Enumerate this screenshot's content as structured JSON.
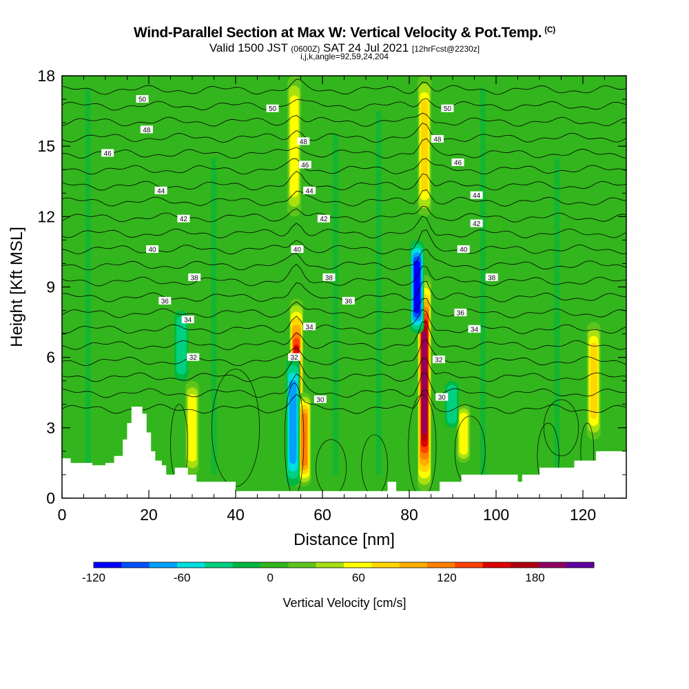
{
  "chart_data": {
    "type": "heatmap",
    "title": "Wind-Parallel Section at Max W: Vertical Velocity & Pot.Temp.",
    "title_mark": "(C)",
    "subtitle_parts": [
      "Valid 1500 JST ",
      "(0600Z)",
      " SAT 24 Jul 2021 ",
      "[12hrFcst@2230z]"
    ],
    "subtitle2": "i,j,k,angle=92,59,24,204",
    "xlabel": "Distance [nm]",
    "ylabel": "Height [Kft MSL]",
    "xlim": [
      0,
      130
    ],
    "ylim": [
      0,
      18
    ],
    "x_ticks": [
      0,
      20,
      40,
      60,
      80,
      100,
      120
    ],
    "y_ticks": [
      0,
      3,
      6,
      9,
      12,
      15,
      18
    ],
    "colorbar": {
      "label": "Vertical Velocity [cm/s]",
      "ticks": [
        -120,
        -60,
        0,
        60,
        120,
        180
      ],
      "range": [
        -120,
        220
      ],
      "colors": [
        "#0000ff",
        "#0050ff",
        "#00a0ff",
        "#00e0e0",
        "#00d080",
        "#00b840",
        "#33b51d",
        "#5cc41a",
        "#a8e010",
        "#ffff00",
        "#ffd700",
        "#ffae00",
        "#ff8000",
        "#ff4000",
        "#e00000",
        "#b00010",
        "#900060",
        "#6000a0"
      ]
    },
    "updrafts": [
      {
        "x": 54,
        "w": 160,
        "band": [
          0.5,
          8.5
        ]
      },
      {
        "x": 55.8,
        "w": 120,
        "band": [
          0.5,
          4.5
        ]
      },
      {
        "x": 83.5,
        "w": 210,
        "band": [
          0.3,
          9.5
        ]
      },
      {
        "x": 83.5,
        "w": 80,
        "band": [
          12,
          18
        ]
      },
      {
        "x": 30,
        "w": 70,
        "band": [
          1,
          5
        ]
      },
      {
        "x": 122.5,
        "w": 90,
        "band": [
          2.5,
          7.5
        ]
      },
      {
        "x": 92.5,
        "w": 70,
        "band": [
          1.5,
          4
        ]
      },
      {
        "x": 53.5,
        "w": 60,
        "band": [
          12,
          18
        ]
      }
    ],
    "downdrafts": [
      {
        "x": 53.2,
        "w": -90,
        "band": [
          0.5,
          6
        ]
      },
      {
        "x": 81.8,
        "w": -120,
        "band": [
          7,
          11
        ]
      },
      {
        "x": 27.5,
        "w": -45,
        "band": [
          5,
          8
        ]
      },
      {
        "x": 89.8,
        "w": -40,
        "band": [
          3,
          5
        ]
      }
    ],
    "theta_labels": [
      {
        "text": "50",
        "x": 18.5,
        "y": 17.0
      },
      {
        "text": "48",
        "x": 19.5,
        "y": 15.7
      },
      {
        "text": "46",
        "x": 10.5,
        "y": 14.7
      },
      {
        "text": "44",
        "x": 22.8,
        "y": 13.1
      },
      {
        "text": "42",
        "x": 28.0,
        "y": 11.9
      },
      {
        "text": "40",
        "x": 20.8,
        "y": 10.6
      },
      {
        "text": "38",
        "x": 30.5,
        "y": 9.4
      },
      {
        "text": "36",
        "x": 23.7,
        "y": 8.4
      },
      {
        "text": "34",
        "x": 29.0,
        "y": 7.6
      },
      {
        "text": "32",
        "x": 30.2,
        "y": 6.0
      },
      {
        "text": "50",
        "x": 48.5,
        "y": 16.6
      },
      {
        "text": "48",
        "x": 55.6,
        "y": 15.2
      },
      {
        "text": "46",
        "x": 56.0,
        "y": 14.2
      },
      {
        "text": "44",
        "x": 57.0,
        "y": 13.1
      },
      {
        "text": "42",
        "x": 60.3,
        "y": 11.9
      },
      {
        "text": "40",
        "x": 54.2,
        "y": 10.6
      },
      {
        "text": "38",
        "x": 61.5,
        "y": 9.4
      },
      {
        "text": "36",
        "x": 66.0,
        "y": 8.4
      },
      {
        "text": "34",
        "x": 57.0,
        "y": 7.3
      },
      {
        "text": "32",
        "x": 53.5,
        "y": 6.0
      },
      {
        "text": "30",
        "x": 59.5,
        "y": 4.2
      },
      {
        "text": "50",
        "x": 88.8,
        "y": 16.6
      },
      {
        "text": "48",
        "x": 86.5,
        "y": 15.3
      },
      {
        "text": "46",
        "x": 91.2,
        "y": 14.3
      },
      {
        "text": "44",
        "x": 95.5,
        "y": 12.9
      },
      {
        "text": "42",
        "x": 95.5,
        "y": 11.7
      },
      {
        "text": "40",
        "x": 92.5,
        "y": 10.6
      },
      {
        "text": "38",
        "x": 99.0,
        "y": 9.4
      },
      {
        "text": "36",
        "x": 91.8,
        "y": 7.9
      },
      {
        "text": "34",
        "x": 95.0,
        "y": 7.2
      },
      {
        "text": "32",
        "x": 86.8,
        "y": 5.9
      },
      {
        "text": "30",
        "x": 87.5,
        "y": 4.3
      }
    ],
    "terrain_profile": [
      [
        0,
        1.7
      ],
      [
        2,
        1.7
      ],
      [
        2,
        1.5
      ],
      [
        7,
        1.5
      ],
      [
        7,
        1.4
      ],
      [
        10,
        1.4
      ],
      [
        10,
        1.5
      ],
      [
        12,
        1.5
      ],
      [
        12,
        1.8
      ],
      [
        14,
        1.8
      ],
      [
        14,
        2.5
      ],
      [
        15,
        2.5
      ],
      [
        15,
        3.2
      ],
      [
        16,
        3.2
      ],
      [
        16,
        3.9
      ],
      [
        18.5,
        3.9
      ],
      [
        18.5,
        3.6
      ],
      [
        19.5,
        3.6
      ],
      [
        19.5,
        2.8
      ],
      [
        20.5,
        2.8
      ],
      [
        20.5,
        2.0
      ],
      [
        21.5,
        2.0
      ],
      [
        21.5,
        1.6
      ],
      [
        23,
        1.6
      ],
      [
        23,
        1.4
      ],
      [
        24,
        1.4
      ],
      [
        24,
        1.0
      ],
      [
        26,
        1.0
      ],
      [
        26,
        1.3
      ],
      [
        29,
        1.3
      ],
      [
        29,
        1.0
      ],
      [
        31,
        1.0
      ],
      [
        31,
        0.7
      ],
      [
        40,
        0.7
      ],
      [
        40,
        0.3
      ],
      [
        75,
        0.3
      ],
      [
        75,
        0.7
      ],
      [
        77,
        0.7
      ],
      [
        77,
        0.3
      ],
      [
        87,
        0.3
      ],
      [
        87,
        0.7
      ],
      [
        92,
        0.7
      ],
      [
        92,
        1.0
      ],
      [
        105,
        1.0
      ],
      [
        105,
        0.7
      ],
      [
        106,
        0.7
      ],
      [
        106,
        1.0
      ],
      [
        110,
        1.0
      ],
      [
        110,
        1.3
      ],
      [
        118,
        1.3
      ],
      [
        118,
        1.6
      ],
      [
        123,
        1.6
      ],
      [
        123,
        2.0
      ],
      [
        130,
        2.0
      ]
    ]
  }
}
